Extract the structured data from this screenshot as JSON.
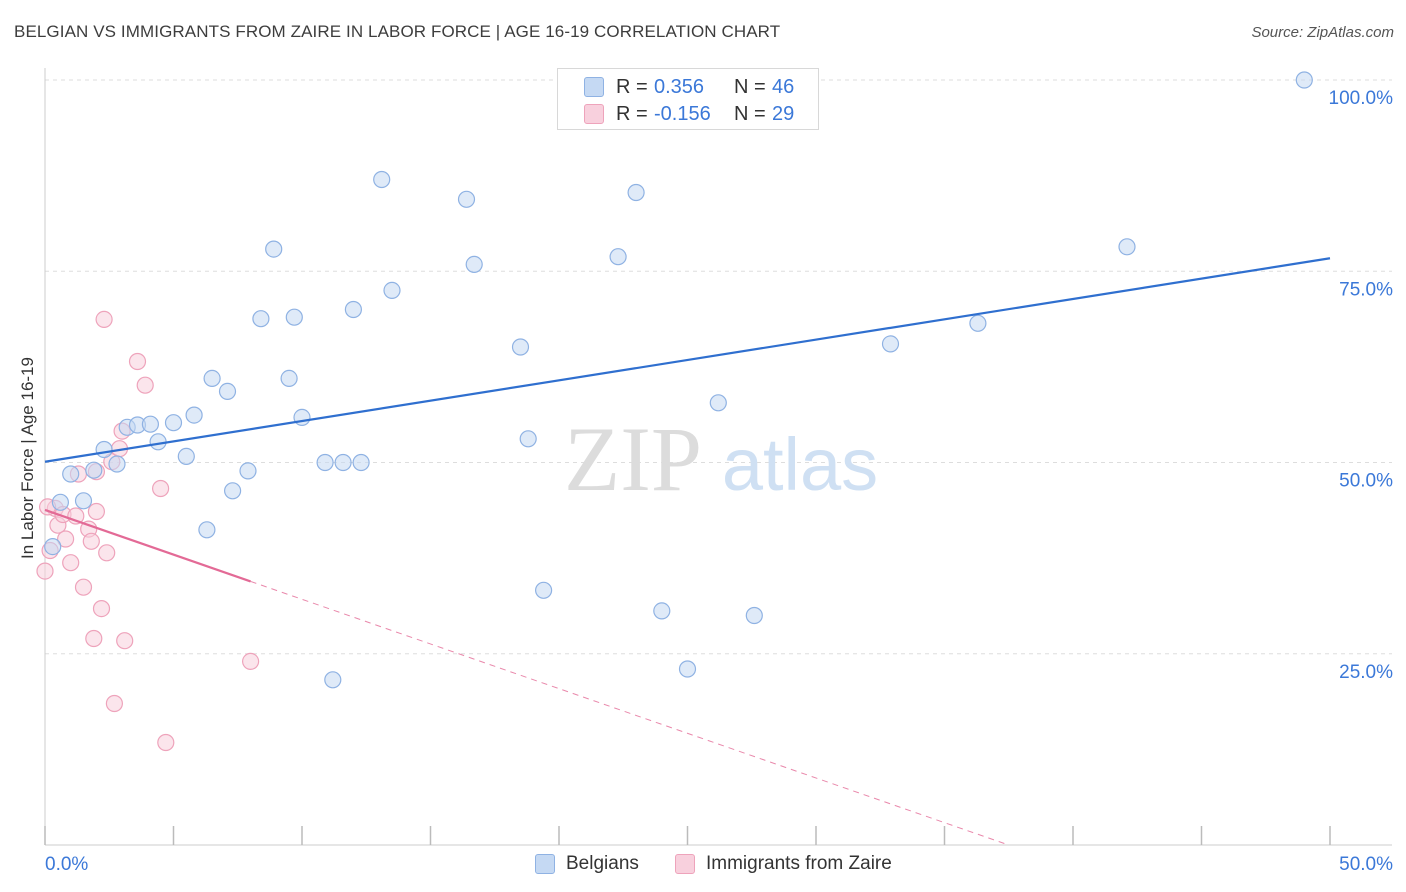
{
  "title": "BELGIAN VS IMMIGRANTS FROM ZAIRE IN LABOR FORCE | AGE 16-19 CORRELATION CHART",
  "source": "Source: ZipAtlas.com",
  "watermark": {
    "zip": "ZIP",
    "atlas": "atlas"
  },
  "legend": {
    "rows": [
      {
        "label": "R =",
        "r": "0.356",
        "n_label": "N =",
        "n": "46"
      },
      {
        "label": "R =",
        "r": "-0.156",
        "n_label": "N =",
        "n": "29"
      }
    ]
  },
  "bottom_legend": {
    "belgians": "Belgians",
    "zaire": "Immigrants from Zaire"
  },
  "chart_data": {
    "type": "scatter",
    "xlabel": "",
    "ylabel": "In Labor Force | Age 16-19",
    "xlim": [
      0,
      50
    ],
    "ylim": [
      0,
      100
    ],
    "x_tick_labels": [
      "0.0%",
      "50.0%"
    ],
    "y_tick_values": [
      25,
      50,
      75,
      100
    ],
    "y_tick_labels": [
      "25.0%",
      "50.0%",
      "75.0%",
      "100.0%"
    ],
    "colors": {
      "belgians_fill": "#c5d9f3",
      "belgians_stroke": "#8fb2e3",
      "belgians_line": "#2f6fcf",
      "zaire_fill": "#f8d0dd",
      "zaire_stroke": "#eea3bb",
      "zaire_line": "#e36a96",
      "tick_label": "#3b78d8",
      "grid": "#dddddd"
    },
    "series": [
      {
        "name": "Belgians",
        "r": 0.356,
        "n": 46,
        "trend": {
          "x0": 0,
          "y0": 50.1,
          "x1": 50,
          "y1": 76.7,
          "dashed_from": null
        },
        "points": [
          [
            0.3,
            39.0
          ],
          [
            0.6,
            44.8
          ],
          [
            1.0,
            48.5
          ],
          [
            1.5,
            45.0
          ],
          [
            1.9,
            49.0
          ],
          [
            2.3,
            51.7
          ],
          [
            2.8,
            49.8
          ],
          [
            3.2,
            54.6
          ],
          [
            3.6,
            54.9
          ],
          [
            4.1,
            55.0
          ],
          [
            4.4,
            52.7
          ],
          [
            5.0,
            55.2
          ],
          [
            5.5,
            50.8
          ],
          [
            5.8,
            56.2
          ],
          [
            6.3,
            41.2
          ],
          [
            6.5,
            61.0
          ],
          [
            7.1,
            59.3
          ],
          [
            7.3,
            46.3
          ],
          [
            7.9,
            48.9
          ],
          [
            8.4,
            68.8
          ],
          [
            8.9,
            77.9
          ],
          [
            9.5,
            61.0
          ],
          [
            9.7,
            69.0
          ],
          [
            10.0,
            55.9
          ],
          [
            10.9,
            50.0
          ],
          [
            11.2,
            21.6
          ],
          [
            11.6,
            50.0
          ],
          [
            12.0,
            70.0
          ],
          [
            12.3,
            50.0
          ],
          [
            13.1,
            87.0
          ],
          [
            13.5,
            72.5
          ],
          [
            16.4,
            84.4
          ],
          [
            16.7,
            75.9
          ],
          [
            18.5,
            65.1
          ],
          [
            18.8,
            53.1
          ],
          [
            19.4,
            33.3
          ],
          [
            22.3,
            76.9
          ],
          [
            23.0,
            85.3
          ],
          [
            24.0,
            30.6
          ],
          [
            25.0,
            23.0
          ],
          [
            26.2,
            57.8
          ],
          [
            27.6,
            30.0
          ],
          [
            32.9,
            65.5
          ],
          [
            36.3,
            68.2
          ],
          [
            42.1,
            78.2
          ],
          [
            49.0,
            100.0
          ]
        ]
      },
      {
        "name": "Immigrants from Zaire",
        "r": -0.156,
        "n": 29,
        "trend": {
          "x0": 0,
          "y0": 43.8,
          "x1": 37.5,
          "y1": 0,
          "dashed_from": 8.0
        },
        "points": [
          [
            0.0,
            35.8
          ],
          [
            0.2,
            38.5
          ],
          [
            0.4,
            44.0
          ],
          [
            0.5,
            41.8
          ],
          [
            0.7,
            43.2
          ],
          [
            0.8,
            40.0
          ],
          [
            1.0,
            36.9
          ],
          [
            1.2,
            43.0
          ],
          [
            1.3,
            48.5
          ],
          [
            1.5,
            33.7
          ],
          [
            1.7,
            41.3
          ],
          [
            1.8,
            39.7
          ],
          [
            1.9,
            27.0
          ],
          [
            2.0,
            48.8
          ],
          [
            2.0,
            43.6
          ],
          [
            2.2,
            30.9
          ],
          [
            2.3,
            68.7
          ],
          [
            2.4,
            38.2
          ],
          [
            2.6,
            50.1
          ],
          [
            2.7,
            18.5
          ],
          [
            2.9,
            51.8
          ],
          [
            3.0,
            54.1
          ],
          [
            3.1,
            26.7
          ],
          [
            3.6,
            63.2
          ],
          [
            3.9,
            60.1
          ],
          [
            4.5,
            46.6
          ],
          [
            4.7,
            13.4
          ],
          [
            8.0,
            24.0
          ],
          [
            0.1,
            44.2
          ]
        ]
      }
    ]
  }
}
